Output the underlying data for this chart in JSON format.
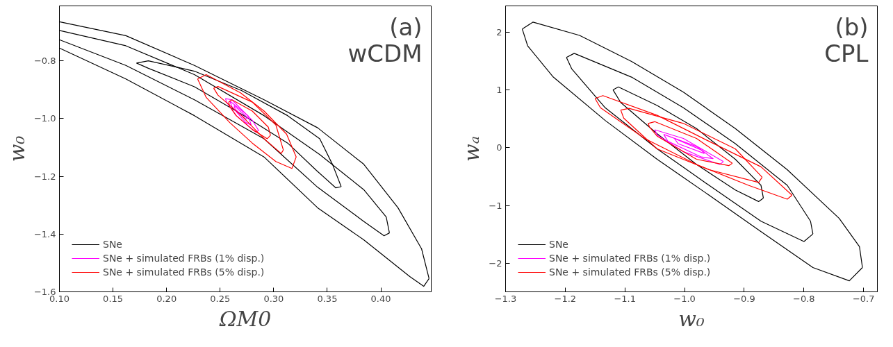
{
  "chart_data": [
    {
      "type": "line",
      "xlabel": "ΩM0",
      "ylabel": "w₀",
      "annotations": [
        "(a)",
        "wCDM"
      ],
      "legend": "bottom left",
      "grid": false,
      "xlim": [
        0.1,
        0.447
      ],
      "ylim": [
        -1.6,
        -0.61
      ],
      "xticks": [
        {
          "value": 0.1,
          "label": "0.10"
        },
        {
          "value": 0.15,
          "label": "0.15"
        },
        {
          "value": 0.2,
          "label": "0.20"
        },
        {
          "value": 0.25,
          "label": "0.25"
        },
        {
          "value": 0.3,
          "label": "0.30"
        },
        {
          "value": 0.35,
          "label": "0.35"
        },
        {
          "value": 0.4,
          "label": "0.40"
        }
      ],
      "yticks": [
        {
          "value": -1.6,
          "label": "−1.6"
        },
        {
          "value": -1.4,
          "label": "−1.4"
        },
        {
          "value": -1.2,
          "label": "−1.2"
        },
        {
          "value": -1.0,
          "label": "−1.0"
        },
        {
          "value": -0.8,
          "label": "−0.8"
        }
      ],
      "series": [
        {
          "name": "SNe",
          "color": "#000000",
          "x": [
            0.1,
            0.162,
            0.226,
            0.291,
            0.341,
            0.384,
            0.416,
            0.438,
            0.445
          ],
          "values": [
            -0.665,
            -0.713,
            -0.816,
            -0.935,
            -1.032,
            -1.158,
            -1.309,
            -1.451,
            -1.554
          ]
        },
        {
          "color": "#000000",
          "x": [
            0.1,
            0.162,
            0.226,
            0.291,
            0.341,
            0.384,
            0.427,
            0.44,
            0.445
          ],
          "values": [
            -0.756,
            -0.863,
            -0.99,
            -1.133,
            -1.309,
            -1.42,
            -1.547,
            -1.581,
            -1.554
          ]
        },
        {
          "color": "#000000",
          "x": [
            0.1,
            0.162,
            0.226,
            0.291,
            0.343,
            0.384,
            0.405,
            0.408
          ],
          "values": [
            -0.695,
            -0.748,
            -0.848,
            -0.99,
            -1.125,
            -1.246,
            -1.341,
            -1.396
          ]
        },
        {
          "color": "#000000",
          "x": [
            0.1,
            0.162,
            0.226,
            0.291,
            0.341,
            0.384,
            0.403,
            0.408
          ],
          "values": [
            -0.727,
            -0.816,
            -0.935,
            -1.07,
            -1.238,
            -1.356,
            -1.406,
            -1.396
          ]
        },
        {
          "color": "#000000",
          "x": [
            0.172,
            0.183,
            0.226,
            0.27,
            0.313,
            0.343,
            0.355,
            0.363
          ],
          "values": [
            -0.808,
            -0.8,
            -0.836,
            -0.903,
            -0.99,
            -1.07,
            -1.16,
            -1.236
          ]
        },
        {
          "color": "#000000",
          "x": [
            0.172,
            0.183,
            0.226,
            0.27,
            0.313,
            0.34,
            0.358,
            0.363
          ],
          "values": [
            -0.808,
            -0.826,
            -0.89,
            -0.985,
            -1.085,
            -1.18,
            -1.24,
            -1.236
          ]
        },
        {
          "name": "SNe + simulated FRBs (1% disp.)",
          "color": "#ff00ff",
          "x": [
            0.255,
            0.261,
            0.28,
            0.286
          ],
          "values": [
            -0.931,
            -0.935,
            -1.006,
            -1.042
          ]
        },
        {
          "color": "#ff00ff",
          "x": [
            0.255,
            0.256,
            0.265,
            0.283,
            0.286
          ],
          "values": [
            -0.931,
            -0.943,
            -0.99,
            -1.046,
            -1.042
          ]
        },
        {
          "color": "#ff00ff",
          "x": [
            0.259,
            0.276,
            0.279
          ],
          "values": [
            -0.939,
            -0.99,
            -1.022
          ]
        },
        {
          "color": "#ff00ff",
          "x": [
            0.259,
            0.261,
            0.274,
            0.279
          ],
          "values": [
            -0.939,
            -0.959,
            -1.014,
            -1.022
          ]
        },
        {
          "color": "#ff00ff",
          "x": [
            0.263,
            0.276
          ],
          "values": [
            -0.955,
            -0.998
          ]
        },
        {
          "color": "#ff00ff",
          "x": [
            0.263,
            0.264,
            0.274,
            0.276
          ],
          "values": [
            -0.955,
            -0.967,
            -1.002,
            -0.998
          ]
        },
        {
          "name": "SNe + simulated FRBs (5% disp.)",
          "color": "#ff0000",
          "x": [
            0.229,
            0.237,
            0.269,
            0.291,
            0.312,
            0.321
          ],
          "values": [
            -0.863,
            -0.848,
            -0.911,
            -0.974,
            -1.054,
            -1.133
          ]
        },
        {
          "color": "#ff0000",
          "x": [
            0.229,
            0.237,
            0.259,
            0.28,
            0.302,
            0.317,
            0.321
          ],
          "values": [
            -0.863,
            -0.927,
            -1.014,
            -1.085,
            -1.149,
            -1.173,
            -1.133
          ]
        },
        {
          "color": "#ff0000",
          "x": [
            0.244,
            0.248,
            0.28,
            0.302,
            0.309
          ],
          "values": [
            -0.895,
            -0.889,
            -0.943,
            -1.022,
            -1.109
          ]
        },
        {
          "color": "#ff0000",
          "x": [
            0.244,
            0.248,
            0.27,
            0.291,
            0.307,
            0.309
          ],
          "values": [
            -0.895,
            -0.919,
            -0.99,
            -1.07,
            -1.121,
            -1.109
          ]
        },
        {
          "color": "#ff0000",
          "x": [
            0.258,
            0.261,
            0.28,
            0.295,
            0.297
          ],
          "values": [
            -0.943,
            -0.935,
            -0.974,
            -1.03,
            -1.058
          ]
        },
        {
          "color": "#ff0000",
          "x": [
            0.258,
            0.259,
            0.265,
            0.28,
            0.294,
            0.297
          ],
          "values": [
            -0.943,
            -0.959,
            -0.99,
            -1.038,
            -1.07,
            -1.058
          ]
        }
      ]
    },
    {
      "type": "line",
      "xlabel": "w₀",
      "ylabel": "wₐ",
      "annotations": [
        "(b)",
        "CPL"
      ],
      "legend": "bottom left",
      "grid": false,
      "xlim": [
        -1.3,
        -0.677
      ],
      "ylim": [
        -2.49,
        2.45
      ],
      "xticks": [
        {
          "value": -1.3,
          "label": "−1.3"
        },
        {
          "value": -1.2,
          "label": "−1.2"
        },
        {
          "value": -1.1,
          "label": "−1.1"
        },
        {
          "value": -1.0,
          "label": "−1.0"
        },
        {
          "value": -0.9,
          "label": "−0.9"
        },
        {
          "value": -0.8,
          "label": "−0.8"
        },
        {
          "value": -0.7,
          "label": "−0.7"
        }
      ],
      "yticks": [
        {
          "value": -2,
          "label": "−2"
        },
        {
          "value": -1,
          "label": "−1"
        },
        0,
        1,
        2
      ],
      "series": [
        {
          "name": "SNe",
          "color": "#000000",
          "x": [
            -1.272,
            -1.254,
            -1.176,
            -1.089,
            -1.002,
            -0.915,
            -0.828,
            -0.741,
            -0.707,
            -0.702
          ],
          "values": [
            2.05,
            2.17,
            1.94,
            1.49,
            0.96,
            0.33,
            -0.38,
            -1.22,
            -1.71,
            -2.07
          ]
        },
        {
          "color": "#000000",
          "x": [
            -1.272,
            -1.263,
            -1.22,
            -1.133,
            -1.046,
            -0.959,
            -0.872,
            -0.785,
            -0.724,
            -0.702
          ],
          "values": [
            2.05,
            1.76,
            1.22,
            0.47,
            -0.2,
            -0.82,
            -1.45,
            -2.07,
            -2.3,
            -2.07
          ]
        },
        {
          "color": "#000000",
          "x": [
            -1.198,
            -1.185,
            -1.089,
            -1.002,
            -0.915,
            -0.828,
            -0.789,
            -0.785
          ],
          "values": [
            1.56,
            1.63,
            1.22,
            0.69,
            0.07,
            -0.65,
            -1.27,
            -1.49
          ]
        },
        {
          "color": "#000000",
          "x": [
            -1.198,
            -1.189,
            -1.133,
            -1.046,
            -0.959,
            -0.872,
            -0.8,
            -0.785
          ],
          "values": [
            1.56,
            1.36,
            0.69,
            -0.02,
            -0.65,
            -1.27,
            -1.62,
            -1.49
          ]
        },
        {
          "color": "#000000",
          "x": [
            -1.12,
            -1.111,
            -1.046,
            -0.98,
            -0.915,
            -0.872,
            -0.868
          ],
          "values": [
            1.0,
            1.05,
            0.73,
            0.33,
            -0.2,
            -0.65,
            -0.87
          ]
        },
        {
          "color": "#000000",
          "x": [
            -1.12,
            -1.107,
            -1.046,
            -0.98,
            -0.915,
            -0.876,
            -0.868
          ],
          "values": [
            1.0,
            0.78,
            0.24,
            -0.29,
            -0.73,
            -0.93,
            -0.87
          ]
        },
        {
          "name": "SNe + simulated FRBs (1% disp.)",
          "color": "#ff00ff",
          "x": [
            -1.05,
            -1.002,
            -0.935
          ],
          "values": [
            0.31,
            0.16,
            -0.24
          ]
        },
        {
          "color": "#ff00ff",
          "x": [
            -1.05,
            -1.046,
            -1.002,
            -0.941,
            -0.935
          ],
          "values": [
            0.31,
            0.22,
            -0.07,
            -0.29,
            -0.24
          ]
        },
        {
          "color": "#ff00ff",
          "x": [
            -1.035,
            -0.98,
            -0.952
          ],
          "values": [
            0.23,
            0.02,
            -0.19
          ]
        },
        {
          "color": "#ff00ff",
          "x": [
            -1.035,
            -1.028,
            -0.972,
            -0.952
          ],
          "values": [
            0.23,
            0.11,
            -0.16,
            -0.19
          ]
        },
        {
          "color": "#ff00ff",
          "x": [
            -1.017,
            -0.972,
            -0.967
          ],
          "values": [
            0.16,
            -0.04,
            -0.1
          ]
        },
        {
          "color": "#ff00ff",
          "x": [
            -1.017,
            -1.011,
            -0.967
          ],
          "values": [
            0.16,
            0.07,
            -0.1
          ]
        },
        {
          "name": "SNe + simulated FRBs (5% disp.)",
          "color": "#ff0000",
          "x": [
            -1.15,
            -1.137,
            -1.046,
            -0.959,
            -0.872,
            -0.82
          ],
          "values": [
            0.85,
            0.9,
            0.56,
            0.11,
            -0.33,
            -0.82
          ]
        },
        {
          "color": "#ff0000",
          "x": [
            -1.15,
            -1.141,
            -1.067,
            -0.98,
            -0.893,
            -0.828,
            -0.82
          ],
          "values": [
            0.85,
            0.69,
            0.16,
            -0.29,
            -0.65,
            -0.89,
            -0.82
          ]
        },
        {
          "color": "#ff0000",
          "x": [
            -1.107,
            -1.093,
            -1.002,
            -0.915,
            -0.87
          ],
          "values": [
            0.65,
            0.68,
            0.42,
            -0.02,
            -0.51
          ]
        },
        {
          "color": "#ff0000",
          "x": [
            -1.107,
            -1.102,
            -1.046,
            -0.959,
            -0.876,
            -0.87
          ],
          "values": [
            0.65,
            0.51,
            -0.02,
            -0.38,
            -0.6,
            -0.51
          ]
        },
        {
          "color": "#ff0000",
          "x": [
            -1.061,
            -1.05,
            -0.98,
            -0.92
          ],
          "values": [
            0.42,
            0.45,
            0.16,
            -0.27
          ]
        },
        {
          "color": "#ff0000",
          "x": [
            -1.061,
            -1.059,
            -1.046,
            -0.98,
            -0.926,
            -0.92
          ],
          "values": [
            0.42,
            0.36,
            0.2,
            -0.2,
            -0.31,
            -0.27
          ]
        }
      ]
    }
  ]
}
